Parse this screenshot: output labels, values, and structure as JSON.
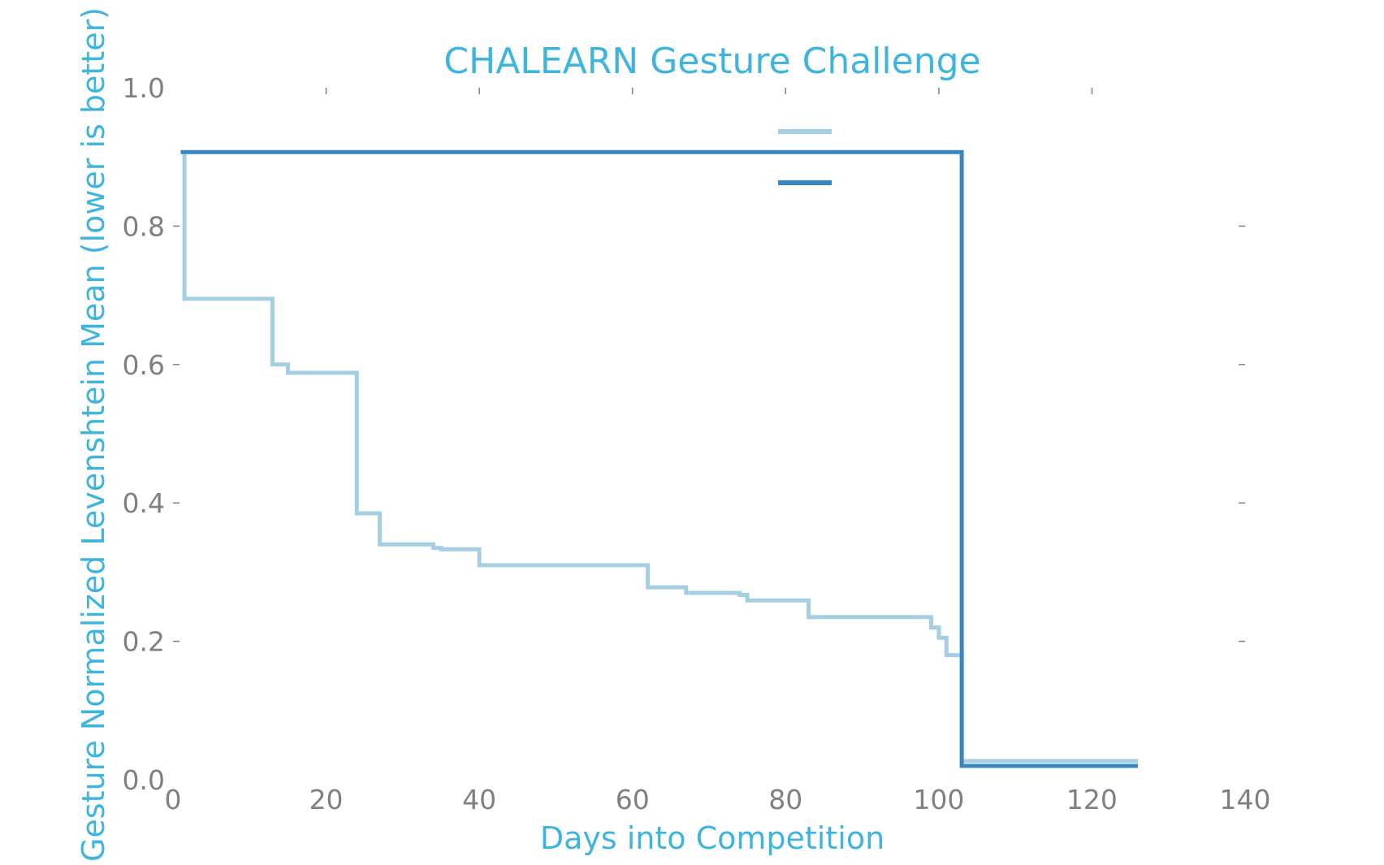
{
  "chart_data": {
    "type": "line",
    "title": "CHALEARN Gesture Challenge",
    "xlabel": "Days into Competition",
    "ylabel": "Gesture Normalized Levenshtein Mean (lower is better)",
    "xlim": [
      0,
      140
    ],
    "ylim": [
      0.0,
      1.0
    ],
    "xticks": [
      "0",
      "20",
      "40",
      "60",
      "80",
      "100",
      "120",
      "140"
    ],
    "yticks": [
      "0.0",
      "0.2",
      "0.4",
      "0.6",
      "0.8",
      "1.0"
    ],
    "grid": false,
    "legend_position": "top-right",
    "series": [
      {
        "color": "#a6cee3",
        "step": true,
        "x": [
          1.5,
          1.5,
          13,
          13,
          15,
          15,
          24,
          24,
          27,
          27,
          34,
          34,
          35,
          35,
          40,
          40,
          62,
          62,
          67,
          67,
          74,
          74,
          75,
          75,
          83,
          83,
          99,
          99,
          100,
          100,
          101,
          101,
          103,
          103,
          126
        ],
        "y": [
          0.905,
          0.695,
          0.695,
          0.6,
          0.6,
          0.588,
          0.588,
          0.385,
          0.385,
          0.34,
          0.34,
          0.335,
          0.335,
          0.333,
          0.333,
          0.31,
          0.31,
          0.278,
          0.278,
          0.27,
          0.27,
          0.267,
          0.267,
          0.259,
          0.259,
          0.235,
          0.235,
          0.22,
          0.22,
          0.205,
          0.205,
          0.18,
          0.18,
          0.027,
          0.027
        ]
      },
      {
        "color": "#3a87c0",
        "step": true,
        "x": [
          1,
          103,
          103,
          126
        ],
        "y": [
          0.907,
          0.907,
          0.02,
          0.02
        ]
      }
    ]
  }
}
